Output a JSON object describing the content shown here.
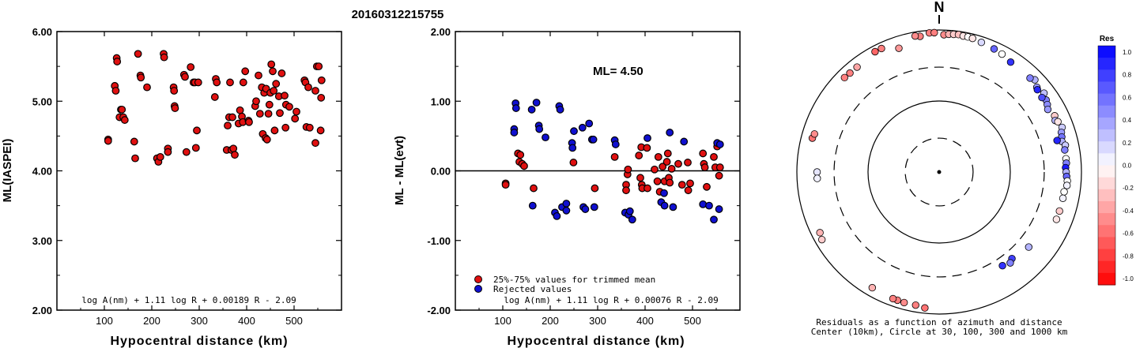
{
  "title": "20160312215755",
  "colors": {
    "red": "#e01010",
    "blue": "#1010d0",
    "res_pos": "#0000ff",
    "res_neg": "#ff0000"
  },
  "left_panel": {
    "ylabel": "ML(IASPEI)",
    "xlabel": "Hypocentral distance (km)",
    "formula": "log A(nm) + 1.11 log R + 0.00189 R - 2.09",
    "x_ticks": [
      "100",
      "200",
      "300",
      "400",
      "500"
    ],
    "y_ticks": [
      "2.00",
      "3.00",
      "4.00",
      "5.00",
      "6.00"
    ]
  },
  "middle_panel": {
    "ylabel": "ML - ML(evt)",
    "xlabel": "Hypocentral distance (km)",
    "formula": "log A(nm) + 1.11 log R + 0.00076 R - 2.09",
    "ml_label": "ML= 4.50",
    "legend": [
      "25%-75% values for trimmed mean",
      "Rejected values"
    ],
    "x_ticks": [
      "100",
      "200",
      "300",
      "400",
      "500"
    ],
    "y_ticks": [
      "-2.00",
      "-1.00",
      "0.00",
      "1.00",
      "2.00"
    ]
  },
  "right_panel": {
    "north_label": "N",
    "caption_line1": "Residuals as a function of azimuth and distance",
    "caption_line2": "Center (10km), Circle at 30, 100, 300 and 1000 km",
    "colorbar_title": "Res",
    "colorbar_ticks": [
      "1.0",
      "0.8",
      "0.6",
      "0.4",
      "0.2",
      "0.0",
      "-0.2",
      "-0.4",
      "-0.6",
      "-0.8",
      "-1.0"
    ]
  },
  "chart_data": [
    {
      "type": "scatter",
      "panel": "left",
      "ylabel": "ML(IASPEI)",
      "xlabel": "Hypocentral distance (km)",
      "xlim": [
        0,
        600
      ],
      "ylim": [
        2.0,
        6.0
      ],
      "points": [
        [
          108,
          4.45
        ],
        [
          108,
          4.43
        ],
        [
          122,
          5.22
        ],
        [
          124,
          5.15
        ],
        [
          126,
          5.62
        ],
        [
          127,
          5.57
        ],
        [
          132,
          4.77
        ],
        [
          135,
          4.88
        ],
        [
          137,
          4.88
        ],
        [
          140,
          4.77
        ],
        [
          143,
          4.73
        ],
        [
          163,
          4.42
        ],
        [
          165,
          4.18
        ],
        [
          171,
          5.68
        ],
        [
          176,
          5.37
        ],
        [
          177,
          5.34
        ],
        [
          190,
          5.2
        ],
        [
          211,
          4.18
        ],
        [
          214,
          4.13
        ],
        [
          218,
          4.2
        ],
        [
          225,
          5.68
        ],
        [
          226,
          5.63
        ],
        [
          234,
          4.32
        ],
        [
          234,
          4.27
        ],
        [
          246,
          5.2
        ],
        [
          247,
          5.15
        ],
        [
          248,
          4.93
        ],
        [
          249,
          4.9
        ],
        [
          268,
          5.38
        ],
        [
          270,
          5.35
        ],
        [
          273,
          4.27
        ],
        [
          282,
          5.49
        ],
        [
          288,
          5.27
        ],
        [
          291,
          5.27
        ],
        [
          293,
          4.33
        ],
        [
          295,
          4.58
        ],
        [
          298,
          5.27
        ],
        [
          333,
          5.06
        ],
        [
          335,
          5.32
        ],
        [
          337,
          5.27
        ],
        [
          358,
          4.3
        ],
        [
          360,
          4.65
        ],
        [
          363,
          4.77
        ],
        [
          365,
          5.27
        ],
        [
          368,
          4.3
        ],
        [
          370,
          4.77
        ],
        [
          372,
          4.32
        ],
        [
          375,
          4.23
        ],
        [
          383,
          4.68
        ],
        [
          386,
          4.87
        ],
        [
          390,
          4.78
        ],
        [
          392,
          4.7
        ],
        [
          393,
          5.27
        ],
        [
          397,
          5.43
        ],
        [
          404,
          4.72
        ],
        [
          405,
          4.7
        ],
        [
          418,
          4.93
        ],
        [
          420,
          5.0
        ],
        [
          425,
          5.37
        ],
        [
          428,
          4.82
        ],
        [
          432,
          5.2
        ],
        [
          434,
          4.53
        ],
        [
          437,
          5.12
        ],
        [
          440,
          4.47
        ],
        [
          441,
          5.18
        ],
        [
          443,
          4.45
        ],
        [
          446,
          4.82
        ],
        [
          448,
          4.95
        ],
        [
          450,
          5.12
        ],
        [
          452,
          5.53
        ],
        [
          455,
          5.43
        ],
        [
          457,
          5.15
        ],
        [
          459,
          4.58
        ],
        [
          462,
          5.25
        ],
        [
          468,
          5.07
        ],
        [
          470,
          4.83
        ],
        [
          474,
          5.4
        ],
        [
          480,
          5.08
        ],
        [
          482,
          4.62
        ],
        [
          483,
          4.95
        ],
        [
          490,
          4.92
        ],
        [
          502,
          4.75
        ],
        [
          505,
          4.85
        ],
        [
          522,
          5.3
        ],
        [
          524,
          5.27
        ],
        [
          526,
          4.63
        ],
        [
          530,
          5.2
        ],
        [
          533,
          4.62
        ],
        [
          545,
          5.15
        ],
        [
          545,
          4.4
        ],
        [
          548,
          5.5
        ],
        [
          552,
          5.5
        ],
        [
          556,
          4.58
        ],
        [
          557,
          5.05
        ],
        [
          558,
          5.3
        ]
      ]
    },
    {
      "type": "scatter",
      "panel": "middle",
      "ylabel": "ML - ML(evt)",
      "xlabel": "Hypocentral distance (km)",
      "ml": 4.5,
      "xlim": [
        0,
        600
      ],
      "ylim": [
        -2.0,
        2.0
      ],
      "series": [
        {
          "name": "25%-75% values for trimmed mean",
          "points": [
            [
              106,
              -0.18
            ],
            [
              106,
              -0.2
            ],
            [
              132,
              0.25
            ],
            [
              135,
              0.13
            ],
            [
              137,
              0.23
            ],
            [
              141,
              0.1
            ],
            [
              145,
              0.07
            ],
            [
              165,
              -0.25
            ],
            [
              249,
              0.12
            ],
            [
              294,
              -0.25
            ],
            [
              336,
              0.2
            ],
            [
              360,
              -0.2
            ],
            [
              360,
              -0.28
            ],
            [
              363,
              -0.05
            ],
            [
              364,
              0.02
            ],
            [
              387,
              0.22
            ],
            [
              390,
              -0.1
            ],
            [
              392,
              0.34
            ],
            [
              393,
              -0.2
            ],
            [
              394,
              -0.25
            ],
            [
              404,
              0.33
            ],
            [
              405,
              -0.25
            ],
            [
              420,
              0.02
            ],
            [
              426,
              -0.15
            ],
            [
              428,
              0.2
            ],
            [
              431,
              -0.3
            ],
            [
              437,
              0.06
            ],
            [
              441,
              -0.15
            ],
            [
              446,
              0.13
            ],
            [
              448,
              0.25
            ],
            [
              450,
              -0.1
            ],
            [
              452,
              -0.17
            ],
            [
              456,
              0.03
            ],
            [
              470,
              0.1
            ],
            [
              478,
              -0.2
            ],
            [
              490,
              0.12
            ],
            [
              491,
              -0.28
            ],
            [
              495,
              -0.18
            ],
            [
              522,
              0.25
            ],
            [
              524,
              0.1
            ],
            [
              526,
              0.05
            ],
            [
              530,
              -0.23
            ],
            [
              545,
              0.2
            ],
            [
              548,
              0.05
            ],
            [
              552,
              0.35
            ],
            [
              556,
              -0.07
            ],
            [
              558,
              0.05
            ]
          ]
        },
        {
          "name": "Rejected values",
          "points": [
            [
              124,
              0.6
            ],
            [
              124,
              0.55
            ],
            [
              127,
              0.97
            ],
            [
              128,
              0.9
            ],
            [
              161,
              0.88
            ],
            [
              163,
              -0.5
            ],
            [
              171,
              0.98
            ],
            [
              176,
              0.65
            ],
            [
              177,
              0.6
            ],
            [
              190,
              0.48
            ],
            [
              210,
              -0.6
            ],
            [
              214,
              -0.65
            ],
            [
              219,
              0.93
            ],
            [
              221,
              0.88
            ],
            [
              225,
              -0.52
            ],
            [
              234,
              -0.57
            ],
            [
              234,
              -0.47
            ],
            [
              246,
              0.4
            ],
            [
              247,
              0.33
            ],
            [
              250,
              0.57
            ],
            [
              268,
              0.62
            ],
            [
              270,
              -0.52
            ],
            [
              274,
              -0.55
            ],
            [
              282,
              0.68
            ],
            [
              288,
              0.45
            ],
            [
              291,
              0.45
            ],
            [
              293,
              -0.52
            ],
            [
              336,
              0.44
            ],
            [
              338,
              0.38
            ],
            [
              358,
              -0.6
            ],
            [
              365,
              -0.63
            ],
            [
              368,
              -0.58
            ],
            [
              373,
              -0.7
            ],
            [
              405,
              0.47
            ],
            [
              434,
              -0.45
            ],
            [
              440,
              -0.32
            ],
            [
              441,
              -0.5
            ],
            [
              452,
              0.55
            ],
            [
              459,
              -0.52
            ],
            [
              482,
              0.42
            ],
            [
              522,
              -0.48
            ],
            [
              535,
              -0.5
            ],
            [
              545,
              -0.7
            ],
            [
              552,
              0.4
            ],
            [
              556,
              -0.55
            ],
            [
              558,
              0.38
            ]
          ]
        }
      ]
    },
    {
      "type": "scatter",
      "panel": "right",
      "description_axes": "azimuth (deg, clockwise from N), hypocentral distance (km), residual",
      "rings_km": [
        30,
        100,
        300,
        1000
      ],
      "points": [
        [
          352,
          850,
          -0.5
        ],
        [
          350,
          880,
          -0.45
        ],
        [
          356,
          920,
          -0.5
        ],
        [
          358,
          920,
          -0.5
        ],
        [
          2,
          860,
          -0.45
        ],
        [
          4,
          880,
          -0.3
        ],
        [
          6,
          890,
          -0.2
        ],
        [
          8,
          900,
          -0.25
        ],
        [
          10,
          880,
          -0.1
        ],
        [
          12,
          880,
          0.0
        ],
        [
          14,
          870,
          -0.1
        ],
        [
          18,
          830,
          0.15
        ],
        [
          24,
          790,
          0.6
        ],
        [
          28,
          760,
          0.0
        ],
        [
          33,
          700,
          0.8
        ],
        [
          46,
          740,
          0.3
        ],
        [
          44,
          690,
          0.5
        ],
        [
          49,
          660,
          0.4
        ],
        [
          53,
          700,
          0.25
        ],
        [
          50,
          635,
          0.85
        ],
        [
          56,
          650,
          0.5
        ],
        [
          58,
          620,
          0.45
        ],
        [
          54,
          610,
          0.7
        ],
        [
          60,
          580,
          0.4
        ],
        [
          64,
          640,
          -0.2
        ],
        [
          66,
          610,
          0.3
        ],
        [
          67,
          650,
          -0.1
        ],
        [
          70,
          690,
          0.2
        ],
        [
          72,
          640,
          0.4
        ],
        [
          74,
          620,
          0.55
        ],
        [
          76,
          600,
          0.3
        ],
        [
          78,
          650,
          0.2
        ],
        [
          80,
          620,
          0.5
        ],
        [
          84,
          620,
          0.0
        ],
        [
          86,
          620,
          0.5
        ],
        [
          88,
          600,
          0.9
        ],
        [
          90,
          610,
          0.3
        ],
        [
          92,
          620,
          0.6
        ],
        [
          94,
          640,
          0.0
        ],
        [
          96,
          640,
          0.05
        ],
        [
          99,
          600,
          0.0
        ],
        [
          102,
          600,
          0.05
        ],
        [
          108,
          600,
          -0.2
        ],
        [
          112,
          600,
          -0.1
        ],
        [
          75,
          520,
          0.85
        ],
        [
          130,
          440,
          0.3
        ],
        [
          140,
          390,
          0.75
        ],
        [
          142,
          420,
          0.5
        ],
        [
          146,
          390,
          0.8
        ],
        [
          190,
          800,
          -0.5
        ],
        [
          186,
          840,
          -0.55
        ],
        [
          195,
          800,
          -0.45
        ],
        [
          198,
          790,
          -0.5
        ],
        [
          200,
          790,
          -0.5
        ],
        [
          210,
          760,
          -0.3
        ],
        [
          240,
          800,
          -0.2
        ],
        [
          243,
          760,
          -0.3
        ],
        [
          270,
          520,
          0.1
        ],
        [
          267,
          520,
          0.05
        ],
        [
          285,
          700,
          -0.55
        ],
        [
          287,
          680,
          -0.45
        ],
        [
          315,
          760,
          -0.5
        ],
        [
          318,
          750,
          -0.5
        ],
        [
          322,
          750,
          -0.35
        ],
        [
          332,
          830,
          -0.6
        ],
        [
          335,
          830,
          -0.5
        ],
        [
          342,
          680,
          -0.4
        ]
      ]
    }
  ]
}
